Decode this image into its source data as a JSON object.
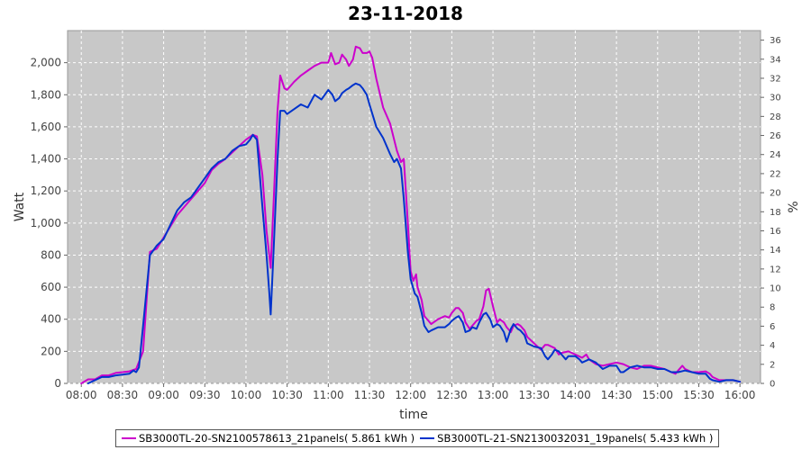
{
  "chart_data": {
    "type": "line",
    "title": "23-11-2018",
    "xlabel": "time",
    "ylabel": "Watt",
    "y2label": "%",
    "xlim": [
      "07:50",
      "16:15"
    ],
    "ylim": [
      0,
      2200
    ],
    "y2lim": [
      0,
      37
    ],
    "x_ticks": [
      "08:00",
      "08:30",
      "09:00",
      "09:30",
      "10:00",
      "10:30",
      "11:00",
      "11:30",
      "12:00",
      "12:30",
      "13:00",
      "13:30",
      "14:00",
      "14:30",
      "15:00",
      "15:30",
      "16:00"
    ],
    "y_ticks": [
      "0",
      "200",
      "400",
      "600",
      "800",
      "1,000",
      "1,200",
      "1,400",
      "1,600",
      "1,800",
      "2,000"
    ],
    "y2_ticks": [
      "0",
      "2",
      "4",
      "6",
      "8",
      "10",
      "12",
      "14",
      "16",
      "18",
      "20",
      "22",
      "24",
      "26",
      "28",
      "30",
      "32",
      "34",
      "36"
    ],
    "grid": true,
    "background": "#c8c8c8",
    "legend_position": "bottom",
    "series": [
      {
        "name": "SB3000TL-20-SN2100578613_21panels( 5.861 kWh )",
        "color": "#cc00cc",
        "points": [
          [
            "08:00",
            0
          ],
          [
            "08:05",
            25
          ],
          [
            "08:10",
            25
          ],
          [
            "08:15",
            50
          ],
          [
            "08:20",
            50
          ],
          [
            "08:25",
            65
          ],
          [
            "08:30",
            70
          ],
          [
            "08:35",
            75
          ],
          [
            "08:40",
            90
          ],
          [
            "08:45",
            200
          ],
          [
            "08:50",
            820
          ],
          [
            "08:55",
            840
          ],
          [
            "09:00",
            910
          ],
          [
            "09:05",
            980
          ],
          [
            "09:10",
            1050
          ],
          [
            "09:15",
            1100
          ],
          [
            "09:20",
            1150
          ],
          [
            "09:25",
            1200
          ],
          [
            "09:30",
            1250
          ],
          [
            "09:35",
            1330
          ],
          [
            "09:40",
            1370
          ],
          [
            "09:45",
            1400
          ],
          [
            "09:50",
            1440
          ],
          [
            "09:55",
            1480
          ],
          [
            "10:00",
            1520
          ],
          [
            "10:05",
            1550
          ],
          [
            "10:08",
            1540
          ],
          [
            "10:12",
            1300
          ],
          [
            "10:15",
            950
          ],
          [
            "10:18",
            720
          ],
          [
            "10:20",
            1100
          ],
          [
            "10:23",
            1700
          ],
          [
            "10:25",
            1920
          ],
          [
            "10:28",
            1840
          ],
          [
            "10:30",
            1830
          ],
          [
            "10:35",
            1880
          ],
          [
            "10:40",
            1920
          ],
          [
            "10:45",
            1950
          ],
          [
            "10:50",
            1980
          ],
          [
            "10:55",
            2000
          ],
          [
            "11:00",
            2000
          ],
          [
            "11:02",
            2060
          ],
          [
            "11:05",
            1990
          ],
          [
            "11:08",
            2000
          ],
          [
            "11:10",
            2050
          ],
          [
            "11:13",
            2020
          ],
          [
            "11:15",
            1980
          ],
          [
            "11:18",
            2020
          ],
          [
            "11:20",
            2100
          ],
          [
            "11:23",
            2090
          ],
          [
            "11:25",
            2060
          ],
          [
            "11:28",
            2060
          ],
          [
            "11:30",
            2070
          ],
          [
            "11:32",
            2030
          ],
          [
            "11:35",
            1900
          ],
          [
            "11:40",
            1720
          ],
          [
            "11:45",
            1620
          ],
          [
            "11:50",
            1450
          ],
          [
            "11:53",
            1380
          ],
          [
            "11:55",
            1400
          ],
          [
            "11:58",
            1000
          ],
          [
            "12:00",
            700
          ],
          [
            "12:02",
            640
          ],
          [
            "12:04",
            680
          ],
          [
            "12:05",
            600
          ],
          [
            "12:08",
            520
          ],
          [
            "12:10",
            420
          ],
          [
            "12:13",
            390
          ],
          [
            "12:15",
            370
          ],
          [
            "12:20",
            400
          ],
          [
            "12:25",
            420
          ],
          [
            "12:28",
            410
          ],
          [
            "12:30",
            440
          ],
          [
            "12:33",
            470
          ],
          [
            "12:35",
            470
          ],
          [
            "12:38",
            440
          ],
          [
            "12:40",
            380
          ],
          [
            "12:43",
            340
          ],
          [
            "12:45",
            360
          ],
          [
            "12:48",
            390
          ],
          [
            "12:50",
            400
          ],
          [
            "12:53",
            480
          ],
          [
            "12:55",
            580
          ],
          [
            "12:57",
            590
          ],
          [
            "13:00",
            480
          ],
          [
            "13:03",
            380
          ],
          [
            "13:05",
            400
          ],
          [
            "13:08",
            380
          ],
          [
            "13:10",
            350
          ],
          [
            "13:13",
            320
          ],
          [
            "13:15",
            360
          ],
          [
            "13:18",
            370
          ],
          [
            "13:20",
            360
          ],
          [
            "13:23",
            330
          ],
          [
            "13:25",
            290
          ],
          [
            "13:30",
            250
          ],
          [
            "13:35",
            210
          ],
          [
            "13:38",
            240
          ],
          [
            "13:40",
            240
          ],
          [
            "13:45",
            220
          ],
          [
            "13:48",
            180
          ],
          [
            "13:50",
            190
          ],
          [
            "13:55",
            200
          ],
          [
            "14:00",
            180
          ],
          [
            "14:05",
            160
          ],
          [
            "14:08",
            180
          ],
          [
            "14:10",
            150
          ],
          [
            "14:15",
            120
          ],
          [
            "14:20",
            110
          ],
          [
            "14:25",
            120
          ],
          [
            "14:30",
            130
          ],
          [
            "14:35",
            120
          ],
          [
            "14:40",
            100
          ],
          [
            "14:45",
            90
          ],
          [
            "14:50",
            110
          ],
          [
            "14:55",
            110
          ],
          [
            "15:00",
            100
          ],
          [
            "15:05",
            90
          ],
          [
            "15:10",
            70
          ],
          [
            "15:13",
            60
          ],
          [
            "15:15",
            80
          ],
          [
            "15:18",
            110
          ],
          [
            "15:20",
            90
          ],
          [
            "15:25",
            70
          ],
          [
            "15:30",
            70
          ],
          [
            "15:35",
            75
          ],
          [
            "15:38",
            60
          ],
          [
            "15:40",
            40
          ],
          [
            "15:45",
            20
          ],
          [
            "15:50",
            20
          ],
          [
            "15:55",
            20
          ],
          [
            "16:00",
            10
          ]
        ]
      },
      {
        "name": "SB3000TL-21-SN2130032031_19panels( 5.433 kWh )",
        "color": "#0033cc",
        "points": [
          [
            "08:05",
            0
          ],
          [
            "08:10",
            20
          ],
          [
            "08:15",
            40
          ],
          [
            "08:20",
            40
          ],
          [
            "08:25",
            50
          ],
          [
            "08:30",
            55
          ],
          [
            "08:35",
            60
          ],
          [
            "08:38",
            80
          ],
          [
            "08:40",
            70
          ],
          [
            "08:42",
            100
          ],
          [
            "08:45",
            360
          ],
          [
            "08:50",
            800
          ],
          [
            "08:55",
            860
          ],
          [
            "09:00",
            900
          ],
          [
            "09:05",
            990
          ],
          [
            "09:10",
            1080
          ],
          [
            "09:15",
            1130
          ],
          [
            "09:20",
            1160
          ],
          [
            "09:25",
            1220
          ],
          [
            "09:30",
            1280
          ],
          [
            "09:35",
            1340
          ],
          [
            "09:40",
            1380
          ],
          [
            "09:45",
            1400
          ],
          [
            "09:50",
            1450
          ],
          [
            "09:55",
            1480
          ],
          [
            "10:00",
            1490
          ],
          [
            "10:03",
            1520
          ],
          [
            "10:05",
            1550
          ],
          [
            "10:08",
            1520
          ],
          [
            "10:12",
            1100
          ],
          [
            "10:15",
            800
          ],
          [
            "10:17",
            570
          ],
          [
            "10:18",
            430
          ],
          [
            "10:20",
            800
          ],
          [
            "10:23",
            1400
          ],
          [
            "10:25",
            1700
          ],
          [
            "10:28",
            1700
          ],
          [
            "10:30",
            1680
          ],
          [
            "10:35",
            1710
          ],
          [
            "10:40",
            1740
          ],
          [
            "10:45",
            1720
          ],
          [
            "10:50",
            1800
          ],
          [
            "10:55",
            1770
          ],
          [
            "11:00",
            1830
          ],
          [
            "11:03",
            1800
          ],
          [
            "11:05",
            1760
          ],
          [
            "11:08",
            1780
          ],
          [
            "11:10",
            1810
          ],
          [
            "11:13",
            1830
          ],
          [
            "11:15",
            1840
          ],
          [
            "11:18",
            1860
          ],
          [
            "11:20",
            1870
          ],
          [
            "11:23",
            1860
          ],
          [
            "11:25",
            1840
          ],
          [
            "11:28",
            1800
          ],
          [
            "11:30",
            1740
          ],
          [
            "11:35",
            1600
          ],
          [
            "11:40",
            1530
          ],
          [
            "11:45",
            1430
          ],
          [
            "11:48",
            1380
          ],
          [
            "11:50",
            1400
          ],
          [
            "11:53",
            1340
          ],
          [
            "11:55",
            1150
          ],
          [
            "11:58",
            820
          ],
          [
            "12:00",
            650
          ],
          [
            "12:03",
            560
          ],
          [
            "12:05",
            540
          ],
          [
            "12:08",
            440
          ],
          [
            "12:10",
            360
          ],
          [
            "12:13",
            320
          ],
          [
            "12:15",
            330
          ],
          [
            "12:20",
            350
          ],
          [
            "12:25",
            350
          ],
          [
            "12:28",
            370
          ],
          [
            "12:30",
            390
          ],
          [
            "12:33",
            410
          ],
          [
            "12:35",
            420
          ],
          [
            "12:38",
            380
          ],
          [
            "12:40",
            320
          ],
          [
            "12:43",
            330
          ],
          [
            "12:45",
            350
          ],
          [
            "12:48",
            340
          ],
          [
            "12:50",
            380
          ],
          [
            "12:53",
            430
          ],
          [
            "12:55",
            440
          ],
          [
            "12:58",
            400
          ],
          [
            "13:00",
            350
          ],
          [
            "13:03",
            370
          ],
          [
            "13:05",
            360
          ],
          [
            "13:08",
            320
          ],
          [
            "13:10",
            260
          ],
          [
            "13:13",
            340
          ],
          [
            "13:15",
            370
          ],
          [
            "13:18",
            340
          ],
          [
            "13:20",
            330
          ],
          [
            "13:23",
            300
          ],
          [
            "13:25",
            250
          ],
          [
            "13:30",
            230
          ],
          [
            "13:35",
            220
          ],
          [
            "13:38",
            170
          ],
          [
            "13:40",
            150
          ],
          [
            "13:43",
            180
          ],
          [
            "13:45",
            210
          ],
          [
            "13:48",
            200
          ],
          [
            "13:50",
            180
          ],
          [
            "13:53",
            150
          ],
          [
            "13:55",
            170
          ],
          [
            "14:00",
            170
          ],
          [
            "14:03",
            150
          ],
          [
            "14:05",
            130
          ],
          [
            "14:10",
            150
          ],
          [
            "14:15",
            130
          ],
          [
            "14:20",
            90
          ],
          [
            "14:25",
            110
          ],
          [
            "14:30",
            110
          ],
          [
            "14:33",
            70
          ],
          [
            "14:35",
            70
          ],
          [
            "14:40",
            100
          ],
          [
            "14:45",
            110
          ],
          [
            "14:50",
            100
          ],
          [
            "14:55",
            100
          ],
          [
            "15:00",
            90
          ],
          [
            "15:05",
            90
          ],
          [
            "15:10",
            70
          ],
          [
            "15:15",
            70
          ],
          [
            "15:20",
            80
          ],
          [
            "15:25",
            70
          ],
          [
            "15:30",
            60
          ],
          [
            "15:35",
            60
          ],
          [
            "15:38",
            30
          ],
          [
            "15:40",
            20
          ],
          [
            "15:45",
            10
          ],
          [
            "15:50",
            20
          ],
          [
            "15:55",
            20
          ],
          [
            "16:00",
            10
          ]
        ]
      }
    ]
  }
}
